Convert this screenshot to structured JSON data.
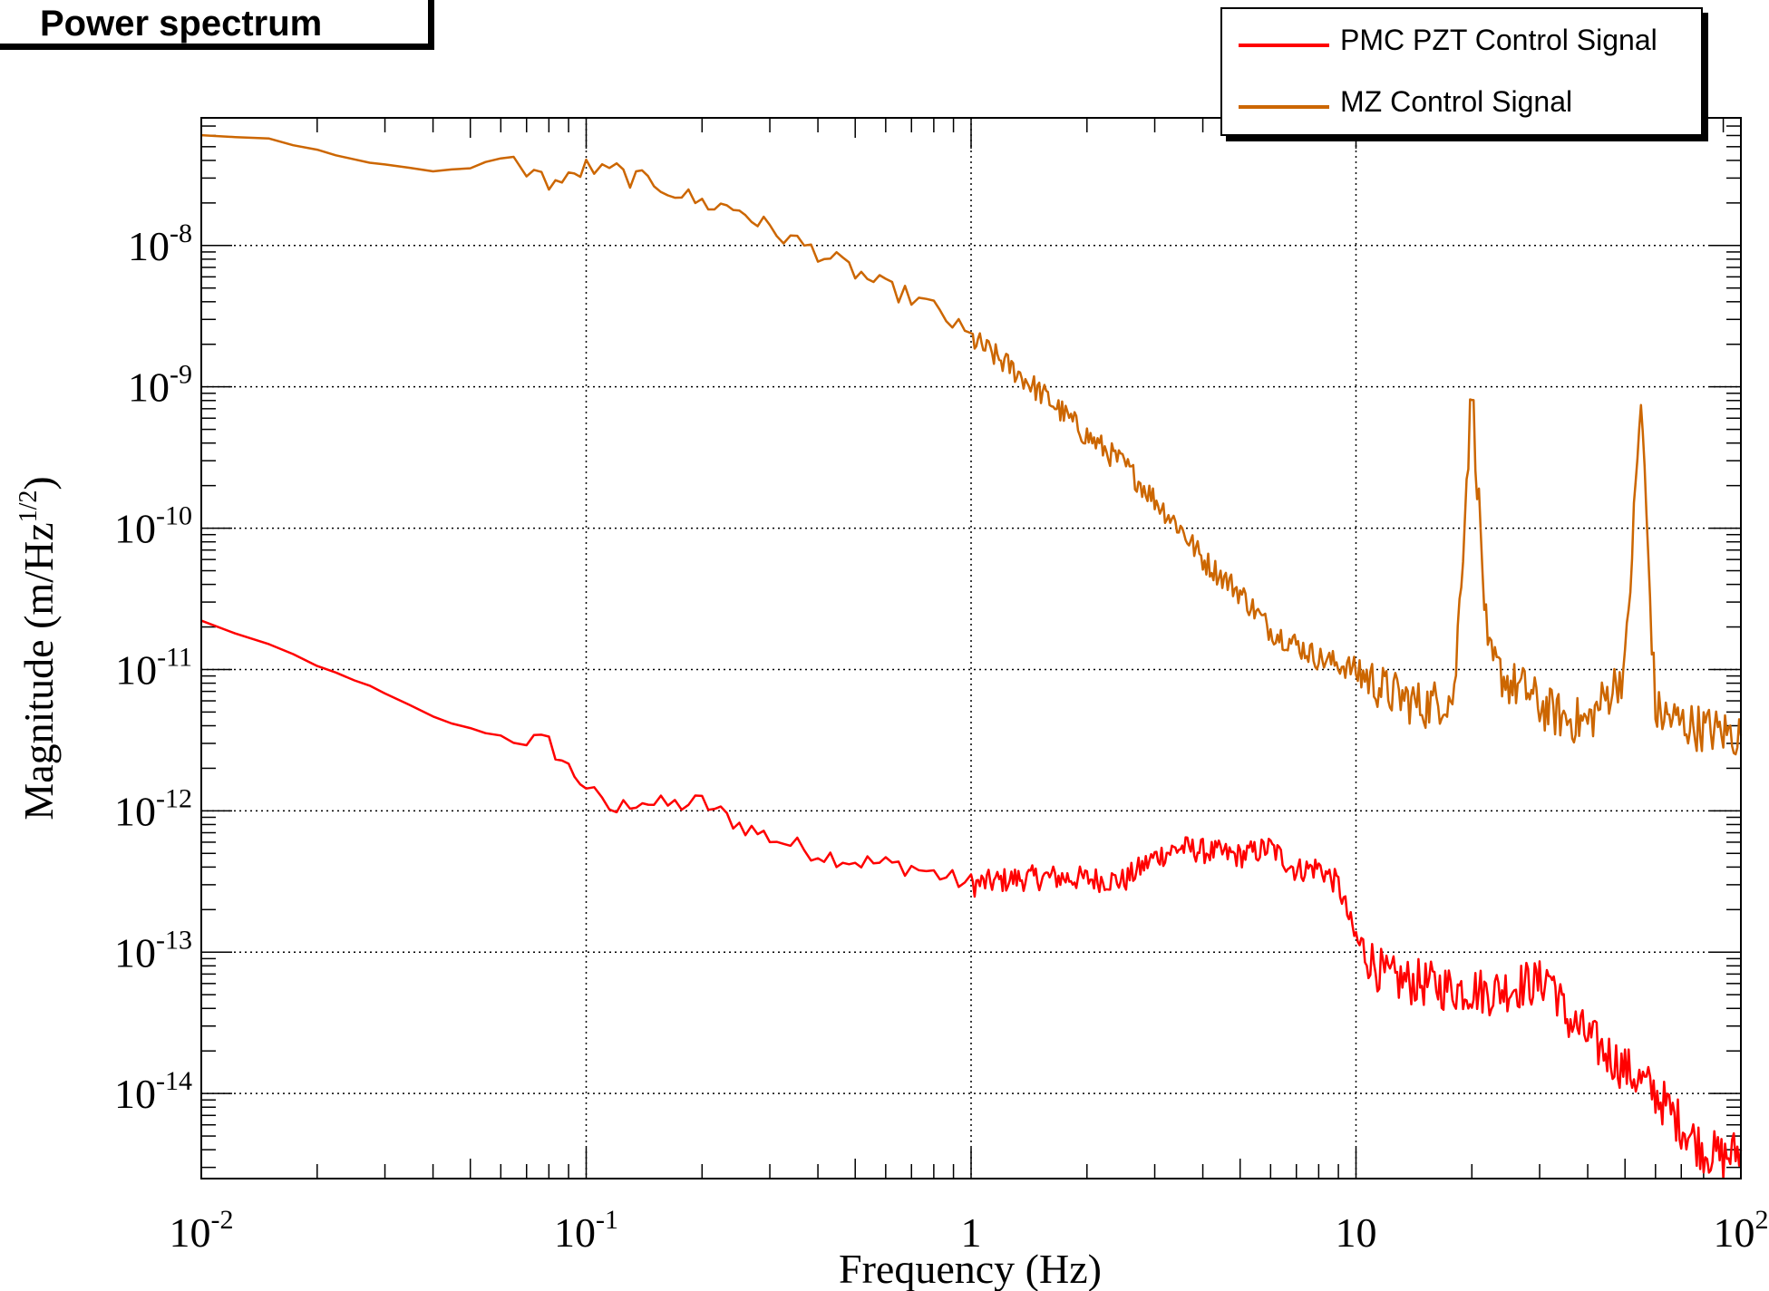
{
  "chart_data": {
    "type": "line",
    "title": "Power spectrum",
    "xlabel": "Frequency (Hz)",
    "ylabel_main": "Magnitude (m/Hz",
    "ylabel_sup": "1/2",
    "ylabel_end": ")",
    "xscale": "log",
    "yscale": "log",
    "xlim": [
      0.01,
      100
    ],
    "ylim": [
      2.5e-15,
      8e-08
    ],
    "grid": true,
    "legend_placement": "top-right",
    "x_ticks": [
      {
        "base": "10",
        "exp": "-2",
        "value": 0.01
      },
      {
        "base": "10",
        "exp": "-1",
        "value": 0.1
      },
      {
        "base": "1",
        "exp": "",
        "value": 1
      },
      {
        "base": "10",
        "exp": "",
        "value": 10
      },
      {
        "base": "10",
        "exp": "2",
        "value": 100
      }
    ],
    "y_ticks": [
      {
        "base": "10",
        "exp": "-8",
        "value": 1e-08
      },
      {
        "base": "10",
        "exp": "-9",
        "value": 1e-09
      },
      {
        "base": "10",
        "exp": "-10",
        "value": 1e-10
      },
      {
        "base": "10",
        "exp": "-11",
        "value": 1e-11
      },
      {
        "base": "10",
        "exp": "-12",
        "value": 1e-12
      },
      {
        "base": "10",
        "exp": "-13",
        "value": 1e-13
      },
      {
        "base": "10",
        "exp": "-14",
        "value": 1e-14
      }
    ],
    "series": [
      {
        "name": "PMC PZT Control Signal",
        "color": "#ff0000",
        "x": [
          0.01,
          0.015,
          0.02,
          0.025,
          0.03,
          0.04,
          0.05,
          0.06,
          0.07,
          0.08,
          0.09,
          0.1,
          0.11,
          0.12,
          0.13,
          0.14,
          0.15,
          0.17,
          0.2,
          0.25,
          0.3,
          0.4,
          0.5,
          0.6,
          0.7,
          0.8,
          1.0,
          1.3,
          1.6,
          2.0,
          2.5,
          3.0,
          3.5,
          4.0,
          5.0,
          6.0,
          7.0,
          8.0,
          9.0,
          10.0,
          12.0,
          15.0,
          18.0,
          20.0,
          22.0,
          25.0,
          28.0,
          30.0,
          32.0,
          35.0,
          40.0,
          50.0,
          60.0,
          70.0,
          80.0,
          90.0,
          100.0
        ],
        "y": [
          2.2e-11,
          1.5e-11,
          1.05e-11,
          8.5e-12,
          6.7e-12,
          4.6e-12,
          3.8e-12,
          3.4e-12,
          3.2e-12,
          3e-12,
          2e-12,
          1.5e-12,
          1.1e-12,
          1e-12,
          1.15e-12,
          1.2e-12,
          1.1e-12,
          1.1e-12,
          1.15e-12,
          8e-13,
          6.5e-13,
          5e-13,
          4.4e-13,
          4.2e-13,
          4e-13,
          3.6e-13,
          3e-13,
          3.3e-13,
          3.4e-13,
          3.3e-13,
          3.2e-13,
          4.7e-13,
          5.5e-13,
          5.2e-13,
          4.8e-13,
          5.5e-13,
          3.8e-13,
          4e-13,
          3e-13,
          1.2e-13,
          6.5e-14,
          6e-14,
          5.5e-14,
          5.5e-14,
          5.2e-14,
          5.6e-14,
          6e-14,
          6e-14,
          7e-14,
          3.5e-14,
          2.5e-14,
          1.5e-14,
          1e-14,
          6e-15,
          4e-15,
          3.5e-15,
          4e-15
        ]
      },
      {
        "name": "MZ Control Signal",
        "color": "#cc6600",
        "x": [
          0.01,
          0.015,
          0.02,
          0.025,
          0.03,
          0.04,
          0.05,
          0.06,
          0.07,
          0.08,
          0.09,
          0.1,
          0.11,
          0.12,
          0.13,
          0.15,
          0.17,
          0.2,
          0.25,
          0.3,
          0.4,
          0.5,
          0.6,
          0.7,
          0.8,
          1.0,
          1.3,
          1.6,
          2.0,
          2.5,
          3.0,
          3.5,
          4.0,
          5.0,
          6.0,
          7.0,
          8.0,
          10.0,
          12.0,
          15.0,
          18.0,
          20.0,
          22.0,
          25.0,
          28.0,
          30.0,
          35.0,
          40.0,
          50.0,
          55.0,
          60.0,
          70.0,
          80.0,
          90.0,
          100.0
        ],
        "y": [
          6e-08,
          5.7e-08,
          4.8e-08,
          4e-08,
          3.8e-08,
          3.3e-08,
          3.5e-08,
          4.2e-08,
          3.5e-08,
          2.8e-08,
          2.9e-08,
          3.6e-08,
          3.3e-08,
          3.4e-08,
          3e-08,
          2.8e-08,
          2.4e-08,
          2e-08,
          1.8e-08,
          1.3e-08,
          9e-09,
          6.5e-09,
          5e-09,
          4.3e-09,
          3.6e-09,
          2.2e-09,
          1.3e-09,
          8e-10,
          4.5e-10,
          2.8e-10,
          1.6e-10,
          1e-10,
          6e-11,
          3.5e-11,
          1.9e-11,
          1.5e-11,
          1.2e-11,
          1e-11,
          7e-12,
          5.5e-12,
          6.5e-12,
          1e-09,
          1.2e-11,
          8e-12,
          7e-12,
          5.5e-12,
          4.5e-12,
          4.2e-12,
          1e-11,
          8e-10,
          5e-12,
          4.2e-12,
          3.8e-12,
          3.6e-12,
          3.4e-12
        ]
      }
    ]
  }
}
